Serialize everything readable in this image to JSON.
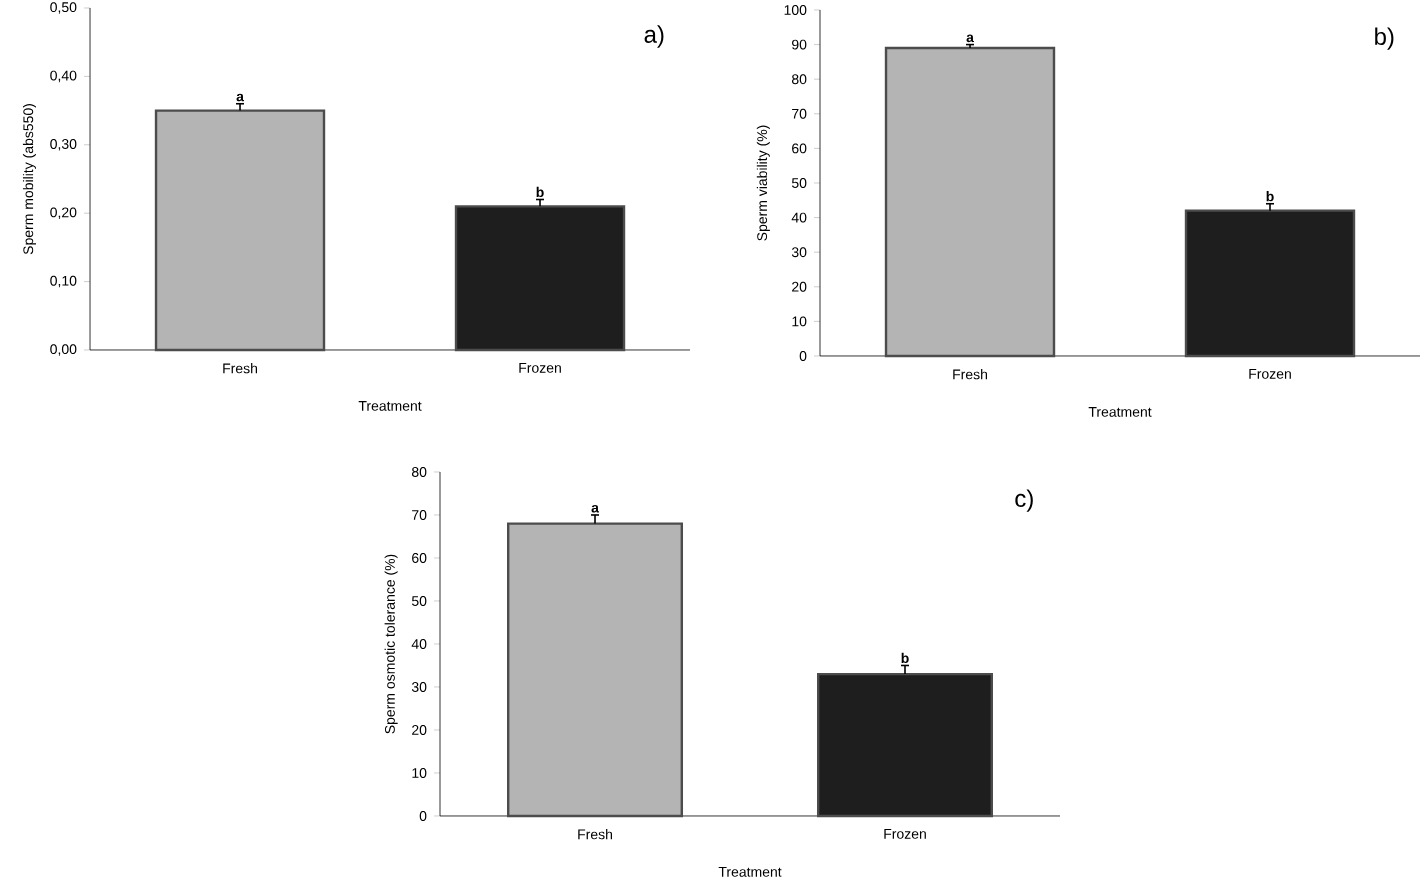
{
  "chart_data": [
    {
      "type": "bar",
      "categories": [
        "Fresh",
        "Frozen"
      ],
      "values": [
        0.35,
        0.21
      ],
      "colors": [
        "#b4b4b4",
        "#1e1e1e"
      ],
      "errors": [
        [
          0.35,
          0.36
        ],
        [
          0.21,
          0.22
        ]
      ],
      "xlabel": "Treatment",
      "ylabel": "Sperm mobility (abs550)",
      "ylim": [
        0,
        0.5
      ],
      "yticks": [
        {
          "value": 0,
          "label": "0,00"
        },
        {
          "value": 0.1,
          "label": "0,10"
        },
        {
          "value": 0.2,
          "label": "0,20"
        },
        {
          "value": 0.3,
          "label": "0,30"
        },
        {
          "value": 0.4,
          "label": "0,40"
        },
        {
          "value": 0.5,
          "label": "0,50"
        }
      ],
      "annotations": [
        {
          "text": "a",
          "x": "Fresh",
          "y": 0.36
        },
        {
          "text": "b",
          "x": "Frozen",
          "y": 0.22
        },
        "a)"
      ]
    },
    {
      "type": "bar",
      "categories": [
        "Fresh",
        "Frozen"
      ],
      "values": [
        89,
        42
      ],
      "colors": [
        "#b4b4b4",
        "#1e1e1e"
      ],
      "errors": [
        [
          89,
          90
        ],
        [
          42,
          44
        ]
      ],
      "xlabel": "Treatment",
      "ylabel": "Sperm viability (%)",
      "ylim": [
        0,
        100
      ],
      "yticks": [
        0,
        10,
        20,
        30,
        40,
        50,
        60,
        70,
        80,
        90,
        100
      ],
      "annotations": [
        {
          "text": "a",
          "x": "Fresh",
          "y": 90
        },
        {
          "text": "b",
          "x": "Frozen",
          "y": 44
        },
        "b)"
      ]
    },
    {
      "type": "bar",
      "categories": [
        "Fresh",
        "Frozen"
      ],
      "values": [
        68,
        33
      ],
      "colors": [
        "#b4b4b4",
        "#1e1e1e"
      ],
      "errors": [
        [
          68,
          70
        ],
        [
          33,
          35
        ]
      ],
      "xlabel": "Treatment",
      "ylabel": "Sperm osmotic tolerance (%)",
      "ylim": [
        0,
        80
      ],
      "yticks": [
        0,
        10,
        20,
        30,
        40,
        50,
        60,
        70,
        80
      ],
      "annotations": [
        {
          "text": "a",
          "x": "Fresh",
          "y": 70
        },
        {
          "text": "b",
          "x": "Frozen",
          "y": 35
        },
        "c)"
      ]
    }
  ]
}
